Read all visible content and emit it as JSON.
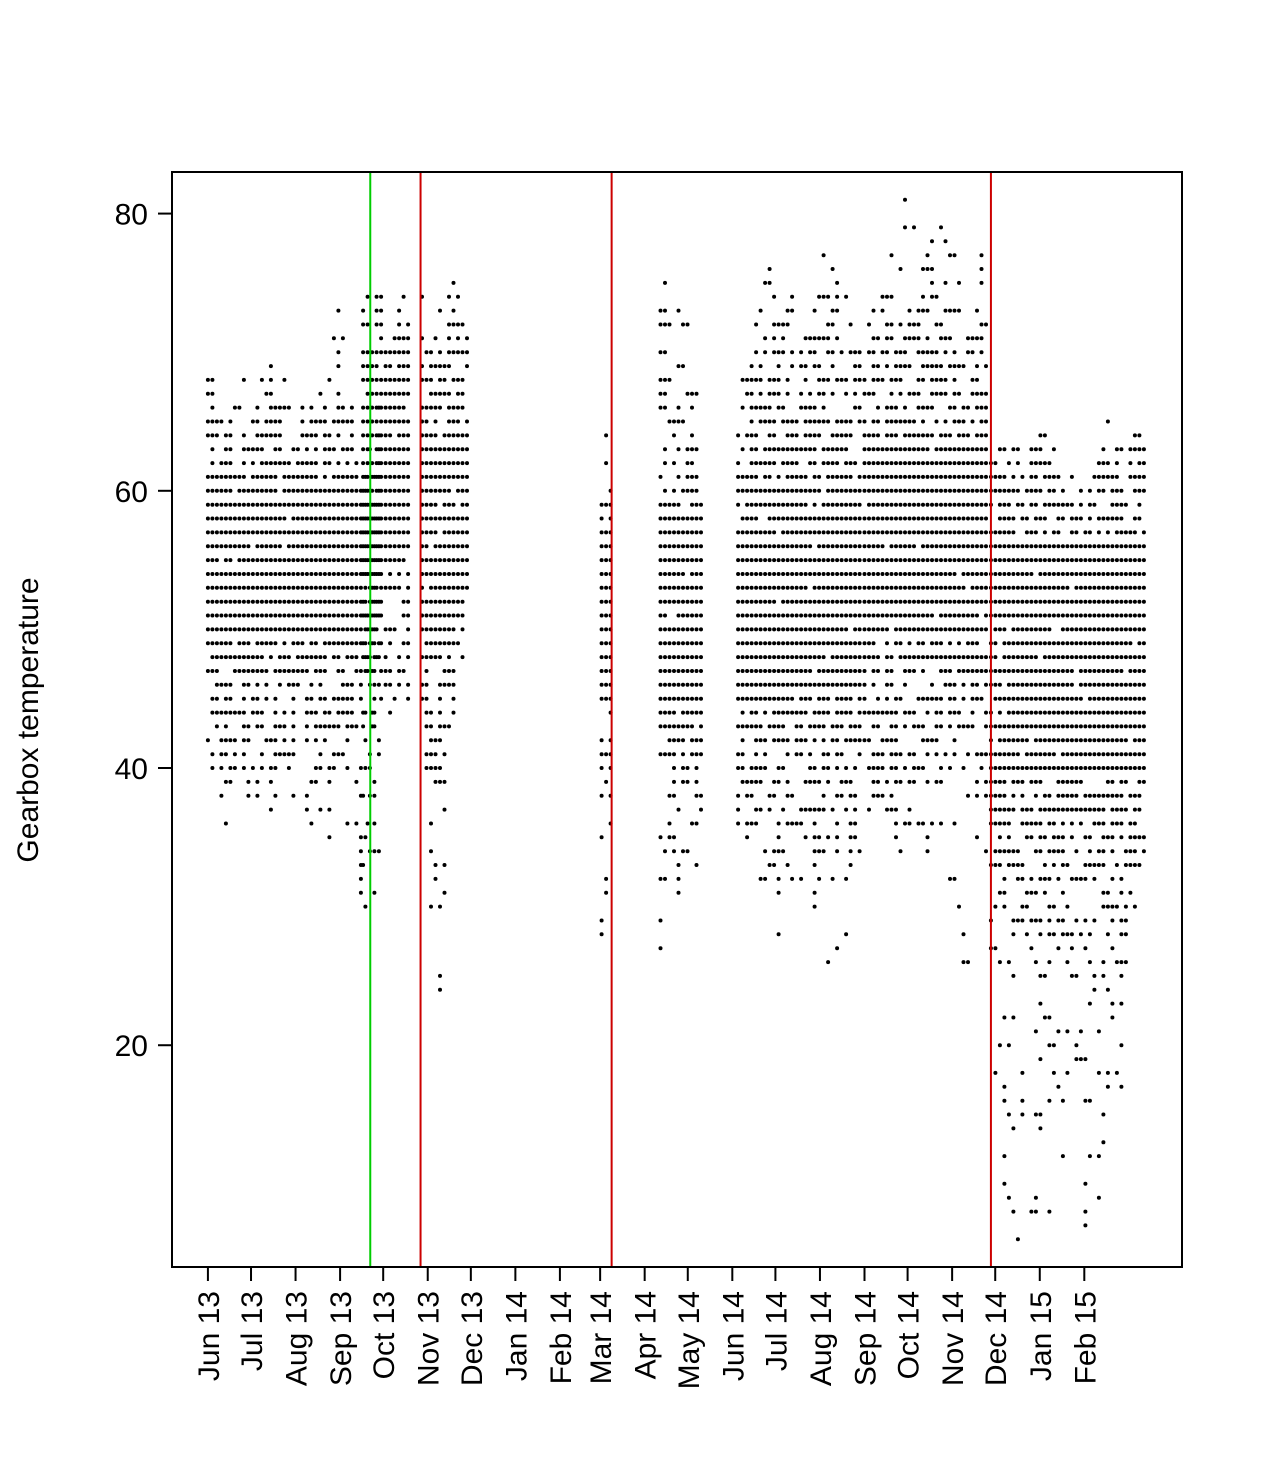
{
  "chart_data": {
    "type": "scatter",
    "title": "",
    "xlabel": "",
    "ylabel": "Gearbox temperature",
    "ylim": [
      4,
      83
    ],
    "yticks": [
      20,
      40,
      60,
      80
    ],
    "grid": false,
    "legend": "none",
    "x_ticks": [
      {
        "date": "2013-06-01",
        "label": "Jun 13"
      },
      {
        "date": "2013-07-01",
        "label": "Jul 13"
      },
      {
        "date": "2013-08-01",
        "label": "Aug 13"
      },
      {
        "date": "2013-09-01",
        "label": "Sep 13"
      },
      {
        "date": "2013-10-01",
        "label": "Oct 13"
      },
      {
        "date": "2013-11-01",
        "label": "Nov 13"
      },
      {
        "date": "2013-12-01",
        "label": "Dec 13"
      },
      {
        "date": "2014-01-01",
        "label": "Jan 14"
      },
      {
        "date": "2014-02-01",
        "label": "Feb 14"
      },
      {
        "date": "2014-03-01",
        "label": "Mar 14"
      },
      {
        "date": "2014-04-01",
        "label": "Apr 14"
      },
      {
        "date": "2014-05-01",
        "label": "May 14"
      },
      {
        "date": "2014-06-01",
        "label": "Jun 14"
      },
      {
        "date": "2014-07-01",
        "label": "Jul 14"
      },
      {
        "date": "2014-08-01",
        "label": "Aug 14"
      },
      {
        "date": "2014-09-01",
        "label": "Sep 14"
      },
      {
        "date": "2014-10-01",
        "label": "Oct 14"
      },
      {
        "date": "2014-11-01",
        "label": "Nov 14"
      },
      {
        "date": "2014-12-01",
        "label": "Dec 14"
      },
      {
        "date": "2015-01-01",
        "label": "Jan 15"
      },
      {
        "date": "2015-02-01",
        "label": "Feb 15"
      }
    ],
    "xlim": [
      "2013-05-07",
      "2015-04-10"
    ],
    "vlines": [
      {
        "date": "2013-09-22",
        "color": "#00cc00"
      },
      {
        "date": "2013-10-27",
        "color": "#cc0000"
      },
      {
        "date": "2014-03-09",
        "color": "#cc0000"
      },
      {
        "date": "2014-11-28",
        "color": "#cc0000"
      }
    ],
    "series": [
      {
        "color": "#000000",
        "segments": [
          {
            "start": "2013-06-01",
            "end": "2013-09-30",
            "shape": "block",
            "core": [
              50,
              59
            ],
            "env": [
              [
                37,
                69
              ],
              [
                38,
                66
              ],
              [
                38,
                67
              ],
              [
                37,
                70
              ],
              [
                37,
                64
              ],
              [
                36,
                65
              ],
              [
                36,
                72
              ],
              [
                30,
                60
              ],
              [
                32,
                67
              ]
            ]
          },
          {
            "start": "2013-09-17",
            "end": "2013-10-20",
            "shape": "block",
            "core": [
              56,
              68
            ],
            "env": [
              [
                33,
                73
              ],
              [
                42,
                72
              ],
              [
                44,
                73
              ],
              [
                48,
                72
              ]
            ]
          },
          {
            "start": "2013-10-28",
            "end": "2013-12-01",
            "shape": "block",
            "core": [
              50,
              64
            ],
            "env": [
              [
                44,
                75
              ],
              [
                20,
                74
              ],
              [
                44,
                75
              ],
              [
                55,
                75
              ]
            ]
          },
          {
            "start": "2014-03-02",
            "end": "2014-03-09",
            "shape": "block",
            "core": [
              46,
              56
            ],
            "env": [
              [
                24,
                61
              ],
              [
                29,
                63
              ],
              [
                36,
                60
              ]
            ]
          },
          {
            "start": "2014-04-12",
            "end": "2014-05-12",
            "shape": "block",
            "core": [
              44,
              58
            ],
            "env": [
              [
                29,
                75
              ],
              [
                32,
                77
              ],
              [
                35,
                75
              ],
              [
                32,
                58
              ]
            ]
          },
          {
            "start": "2014-06-05",
            "end": "2014-08-31",
            "shape": "block",
            "core": [
              46,
              60
            ],
            "env": [
              [
                37,
                64
              ],
              [
                29,
                78
              ],
              [
                32,
                72
              ],
              [
                25,
                78
              ],
              [
                29,
                70
              ]
            ]
          },
          {
            "start": "2014-09-01",
            "end": "2014-11-27",
            "shape": "block",
            "core": [
              50,
              63
            ],
            "env": [
              [
                33,
                69
              ],
              [
                35,
                79
              ],
              [
                32,
                80
              ],
              [
                33,
                80
              ],
              [
                26,
                72
              ],
              [
                29,
                80
              ]
            ]
          },
          {
            "start": "2014-11-28",
            "end": "2015-03-17",
            "shape": "block",
            "core": [
              40,
              56
            ],
            "env": [
              [
                13,
                63
              ],
              [
                7,
                62
              ],
              [
                8,
                64
              ],
              [
                6,
                60
              ],
              [
                10,
                63
              ],
              [
                17,
                64
              ],
              [
                39,
                66
              ]
            ]
          }
        ]
      }
    ]
  }
}
